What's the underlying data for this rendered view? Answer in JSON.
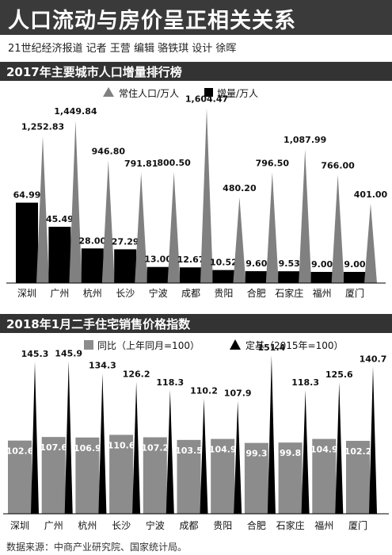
{
  "header": {
    "title": "人口流动与房价呈正相关关系",
    "byline": "21世纪经济报道 记者 王营 编辑 骆铁琪 设计 徐晖"
  },
  "footer": {
    "source": "数据来源：中商产业研究院、国家统计局。"
  },
  "colors": {
    "bar_black": "#000000",
    "bar_gray": "#8c8c8c",
    "triangle_gray": "#808080",
    "triangle_black": "#000000",
    "title_bar": "#3a3a3a"
  },
  "chart_data": [
    {
      "type": "bar",
      "title": "2017年主要城市人口增量排行榜",
      "legend": [
        {
          "name": "常住人口/万人",
          "icon": "gray-triangle"
        },
        {
          "name": "增量/万人",
          "icon": "black-square"
        }
      ],
      "categories": [
        "深圳",
        "广州",
        "杭州",
        "长沙",
        "宁波",
        "成都",
        "贵阳",
        "合肥",
        "石家庄",
        "福州",
        "厦门"
      ],
      "series": [
        {
          "name": "增量/万人",
          "mark": "bar",
          "values": [
            64.99,
            45.49,
            28.0,
            27.29,
            13.0,
            12.67,
            10.52,
            9.6,
            9.53,
            9.0,
            9.0
          ],
          "labels": [
            "64.99",
            "45.49",
            "28.00",
            "27.29",
            "13.00",
            "12.67",
            "10.52",
            "9.60",
            "9.53",
            "9.00",
            "9.00"
          ]
        },
        {
          "name": "常住人口/万人",
          "mark": "triangle",
          "values": [
            1252.83,
            1449.84,
            946.8,
            791.81,
            800.5,
            1604.47,
            480.2,
            796.5,
            1087.99,
            766.0,
            401.0
          ],
          "labels": [
            "1,252.83",
            "1,449.84",
            "946.80",
            "791.81",
            "800.50",
            "1,604.47",
            "480.20",
            "796.50",
            "1,087.99",
            "766.00",
            "401.00"
          ]
        }
      ]
    },
    {
      "type": "bar",
      "title": "2018年1月二手住宅销售价格指数",
      "legend": [
        {
          "name": "同比（上年同月=100）",
          "icon": "gray-square"
        },
        {
          "name": "定基（2015年=100）",
          "icon": "black-triangle"
        }
      ],
      "categories": [
        "深圳",
        "广州",
        "杭州",
        "长沙",
        "宁波",
        "成都",
        "贵阳",
        "合肥",
        "石家庄",
        "福州",
        "厦门"
      ],
      "series": [
        {
          "name": "同比（上年同月=100）",
          "mark": "bar",
          "values": [
            102.6,
            107.6,
            106.9,
            110.6,
            107.2,
            103.5,
            104.9,
            99.3,
            99.8,
            104.9,
            102.2
          ],
          "labels": [
            "102.6",
            "107.6",
            "106.9",
            "110.6",
            "107.2",
            "103.5",
            "104.9",
            "99.3",
            "99.8",
            "104.9",
            "102.2"
          ]
        },
        {
          "name": "定基（2015年=100）",
          "mark": "triangle",
          "values": [
            145.3,
            145.9,
            134.3,
            126.2,
            118.3,
            110.2,
            107.9,
            151.4,
            118.3,
            125.6,
            140.7
          ],
          "labels": [
            "145.3",
            "145.9",
            "134.3",
            "126.2",
            "118.3",
            "110.2",
            "107.9",
            "151.4",
            "118.3",
            "125.6",
            "140.7"
          ]
        }
      ]
    }
  ]
}
